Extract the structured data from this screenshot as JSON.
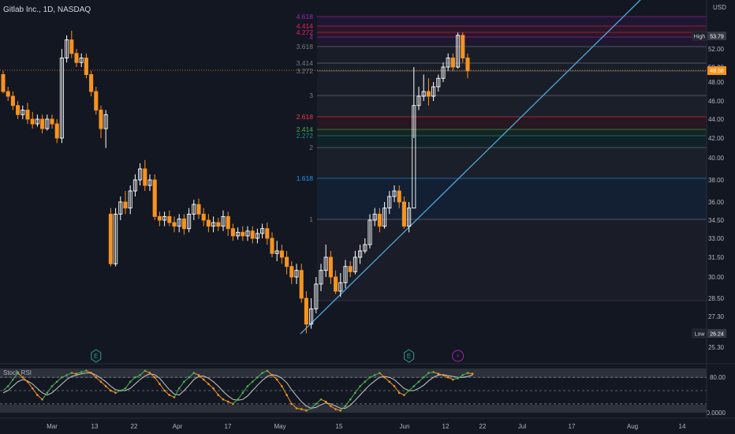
{
  "header": {
    "title": "Gitlab Inc., 1D, NASDAQ",
    "currency": "USD"
  },
  "colors": {
    "bg": "#131722",
    "up": "#ffffff",
    "down": "#f7931e",
    "trend": "#4fa8d8"
  },
  "chart_data": {
    "type": "candlestick",
    "price_axis": {
      "labels": [
        "52.00",
        "50.00",
        "48.00",
        "46.00",
        "44.00",
        "42.00",
        "40.00",
        "38.00",
        "36.00",
        "34.50",
        "33.00",
        "31.50",
        "30.00",
        "28.50",
        "27.30",
        "26.24",
        "25.30"
      ],
      "ticks": [
        52,
        50,
        48,
        46,
        44,
        42,
        40,
        38,
        36,
        34.5,
        33,
        31.5,
        30,
        28.5,
        27.3,
        25.3
      ],
      "high_label": "High",
      "high_value": "53.79",
      "low_label": "Low",
      "low_value": "26.24",
      "last_value": "48.58"
    },
    "time_axis": [
      "Mar",
      "13",
      "22",
      "Apr",
      "17",
      "May",
      "15",
      "Jun",
      "12",
      "22",
      "Jul",
      "17",
      "Aug",
      "14"
    ],
    "fibonacci_extension": [
      {
        "level": "4.618",
        "color": "#9c27b0"
      },
      {
        "level": "4.414",
        "color": "#e91e63"
      },
      {
        "level": "4.272",
        "color": "#e91e63"
      },
      {
        "level": "4",
        "color": "#9c27b0"
      },
      {
        "level": "3.618",
        "color": "#787b86"
      },
      {
        "level": "3.414",
        "color": "#787b86"
      },
      {
        "level": "3.272",
        "color": "#787b86"
      },
      {
        "level": "3",
        "color": "#787b86"
      },
      {
        "level": "2.618",
        "color": "#f23645"
      },
      {
        "level": "2.414",
        "color": "#4caf50"
      },
      {
        "level": "2.272",
        "color": "#089981"
      },
      {
        "level": "2",
        "color": "#787b86"
      },
      {
        "level": "1.618",
        "color": "#2196f3"
      },
      {
        "level": "1",
        "color": "#787b86"
      }
    ],
    "candles": [
      [
        49.0,
        47.0,
        49.5,
        46.8
      ],
      [
        47.0,
        46.5,
        47.5,
        46.0
      ],
      [
        46.5,
        45.5,
        47.0,
        45.0
      ],
      [
        45.5,
        44.5,
        46.0,
        44.0
      ],
      [
        44.5,
        45.0,
        45.5,
        44.0
      ],
      [
        45.0,
        44.0,
        45.8,
        43.5
      ],
      [
        44.0,
        43.5,
        44.8,
        43.0
      ],
      [
        43.5,
        44.0,
        44.5,
        43.2
      ],
      [
        44.0,
        43.0,
        44.5,
        42.5
      ],
      [
        43.0,
        44.0,
        44.5,
        42.8
      ],
      [
        44.0,
        43.5,
        44.5,
        43.0
      ],
      [
        43.5,
        42.0,
        44.0,
        41.5
      ],
      [
        42.0,
        51.0,
        52.0,
        41.5
      ],
      [
        51.0,
        53.0,
        53.5,
        50.5
      ],
      [
        53.0,
        51.5,
        54.0,
        51.0
      ],
      [
        51.5,
        50.5,
        52.0,
        50.0
      ],
      [
        50.5,
        51.0,
        51.5,
        50.0
      ],
      [
        51.0,
        49.0,
        51.5,
        48.5
      ],
      [
        49.0,
        47.0,
        49.5,
        46.5
      ],
      [
        47.0,
        45.0,
        47.5,
        44.5
      ],
      [
        45.0,
        43.0,
        45.5,
        42.0
      ],
      [
        43.0,
        44.5,
        45.0,
        41.0
      ],
      [
        35.0,
        31.0,
        35.5,
        30.8
      ],
      [
        31.0,
        35.0,
        35.5,
        30.8
      ],
      [
        35.0,
        36.0,
        36.5,
        34.5
      ],
      [
        36.0,
        35.5,
        37.0,
        35.0
      ],
      [
        35.5,
        37.0,
        37.5,
        35.0
      ],
      [
        37.0,
        38.0,
        38.5,
        36.5
      ],
      [
        38.0,
        39.0,
        39.5,
        37.5
      ],
      [
        39.0,
        37.5,
        39.8,
        37.0
      ],
      [
        37.5,
        38.0,
        38.5,
        37.0
      ],
      [
        38.0,
        34.8,
        38.5,
        34.5
      ],
      [
        34.8,
        34.5,
        35.2,
        34.0
      ],
      [
        34.5,
        34.8,
        35.2,
        34.0
      ],
      [
        34.8,
        34.3,
        35.3,
        34.0
      ],
      [
        34.3,
        34.0,
        34.8,
        33.5
      ],
      [
        34.0,
        34.6,
        35.0,
        33.5
      ],
      [
        34.6,
        33.8,
        35.0,
        33.3
      ],
      [
        33.8,
        35.0,
        35.5,
        33.5
      ],
      [
        35.0,
        35.8,
        36.2,
        34.5
      ],
      [
        35.8,
        35.0,
        36.3,
        34.6
      ],
      [
        35.0,
        34.5,
        35.5,
        34.0
      ],
      [
        34.5,
        34.0,
        35.0,
        33.5
      ],
      [
        34.0,
        34.3,
        34.8,
        33.5
      ],
      [
        34.3,
        34.0,
        34.7,
        33.6
      ],
      [
        34.0,
        34.8,
        35.3,
        33.6
      ],
      [
        34.8,
        33.8,
        35.2,
        33.2
      ],
      [
        33.8,
        33.2,
        34.2,
        32.8
      ],
      [
        33.2,
        33.5,
        33.9,
        32.9
      ],
      [
        33.5,
        33.2,
        34.0,
        32.8
      ],
      [
        33.2,
        33.6,
        34.0,
        32.8
      ],
      [
        33.6,
        33.0,
        34.0,
        32.6
      ],
      [
        33.0,
        33.4,
        33.8,
        32.6
      ],
      [
        33.4,
        33.8,
        34.2,
        33.0
      ],
      [
        33.8,
        33.0,
        34.3,
        32.5
      ],
      [
        33.0,
        31.8,
        33.5,
        31.5
      ],
      [
        31.8,
        32.0,
        32.8,
        31.2
      ],
      [
        32.0,
        31.5,
        32.5,
        31.0
      ],
      [
        31.5,
        30.8,
        32.0,
        30.2
      ],
      [
        30.8,
        30.0,
        31.2,
        29.5
      ],
      [
        30.0,
        30.5,
        31.0,
        29.5
      ],
      [
        30.5,
        28.5,
        31.0,
        28.2
      ],
      [
        28.5,
        26.8,
        29.0,
        26.2
      ],
      [
        26.8,
        27.8,
        28.5,
        26.5
      ],
      [
        27.8,
        29.5,
        30.0,
        27.5
      ],
      [
        29.5,
        30.5,
        31.0,
        29.0
      ],
      [
        30.5,
        31.5,
        32.5,
        30.0
      ],
      [
        31.5,
        30.0,
        32.0,
        29.5
      ],
      [
        30.0,
        29.0,
        30.5,
        28.8
      ],
      [
        29.0,
        29.6,
        30.3,
        28.6
      ],
      [
        29.6,
        30.8,
        31.3,
        29.2
      ],
      [
        30.8,
        30.4,
        31.2,
        30.0
      ],
      [
        30.4,
        31.5,
        32.0,
        30.2
      ],
      [
        31.5,
        32.0,
        32.5,
        31.0
      ],
      [
        32.0,
        32.5,
        33.0,
        31.8
      ],
      [
        32.5,
        34.5,
        35.0,
        32.2
      ],
      [
        34.5,
        35.0,
        35.5,
        34.0
      ],
      [
        35.0,
        34.0,
        35.5,
        33.5
      ],
      [
        34.0,
        35.5,
        36.0,
        33.8
      ],
      [
        35.5,
        36.5,
        37.0,
        35.0
      ],
      [
        36.5,
        37.0,
        37.5,
        36.0
      ],
      [
        37.0,
        36.0,
        37.5,
        35.5
      ],
      [
        36.0,
        34.0,
        36.5,
        33.8
      ],
      [
        34.0,
        35.5,
        36.0,
        33.5
      ],
      [
        35.5,
        45.5,
        50.0,
        42.0
      ],
      [
        45.5,
        46.5,
        47.5,
        45.0
      ],
      [
        46.5,
        47.0,
        49.0,
        46.0
      ],
      [
        47.0,
        46.5,
        48.5,
        45.5
      ],
      [
        46.5,
        47.5,
        48.0,
        46.0
      ],
      [
        47.5,
        48.5,
        49.0,
        47.0
      ],
      [
        48.5,
        50.0,
        50.5,
        48.0
      ],
      [
        50.0,
        51.0,
        51.5,
        49.5
      ],
      [
        51.0,
        50.0,
        51.5,
        49.5
      ],
      [
        50.0,
        53.5,
        53.8,
        49.8
      ],
      [
        53.5,
        51.0,
        53.8,
        50.5
      ],
      [
        51.0,
        49.5,
        51.5,
        48.5
      ]
    ],
    "anchor": {
      "start": 0.0,
      "end": 95.0
    },
    "oscillator": {
      "title": "Stoch RSI",
      "levels": [
        {
          "value": "80.00"
        },
        {
          "value": "0.0000"
        }
      ],
      "k": [
        50,
        60,
        75,
        90,
        80,
        70,
        55,
        40,
        30,
        45,
        60,
        70,
        80,
        85,
        90,
        88,
        92,
        95,
        90,
        80,
        70,
        60,
        50,
        45,
        50,
        55,
        70,
        80,
        85,
        95,
        90,
        80,
        65,
        50,
        40,
        35,
        55,
        70,
        80,
        90,
        85,
        75,
        65,
        55,
        40,
        30,
        25,
        20,
        30,
        45,
        60,
        70,
        80,
        90,
        95,
        85,
        75,
        60,
        40,
        20,
        10,
        8,
        5,
        10,
        20,
        30,
        25,
        15,
        8,
        5,
        15,
        30,
        45,
        60,
        70,
        80,
        85,
        90,
        80,
        70,
        60,
        45,
        40,
        50,
        60,
        70,
        80,
        90,
        92,
        88,
        85,
        80,
        75,
        78,
        85,
        90,
        88
      ],
      "d": [
        45,
        50,
        60,
        70,
        75,
        72,
        65,
        55,
        45,
        40,
        45,
        55,
        65,
        75,
        82,
        85,
        88,
        90,
        90,
        85,
        78,
        70,
        60,
        52,
        50,
        50,
        55,
        65,
        75,
        83,
        88,
        86,
        78,
        65,
        52,
        42,
        40,
        50,
        62,
        75,
        82,
        83,
        78,
        70,
        60,
        48,
        38,
        30,
        28,
        30,
        38,
        50,
        62,
        73,
        82,
        86,
        84,
        78,
        68,
        52,
        38,
        25,
        15,
        10,
        12,
        18,
        22,
        20,
        15,
        10,
        10,
        17,
        28,
        40,
        52,
        63,
        72,
        80,
        82,
        80,
        75,
        65,
        55,
        50,
        50,
        55,
        62,
        72,
        80,
        85,
        86,
        84,
        82,
        80,
        80,
        82,
        85
      ]
    },
    "events": [
      {
        "kind": "earnings",
        "label": "E",
        "at": 19
      },
      {
        "kind": "earnings",
        "label": "E",
        "at": 83
      },
      {
        "kind": "dividend",
        "label": "⚡",
        "at": 93
      }
    ]
  }
}
